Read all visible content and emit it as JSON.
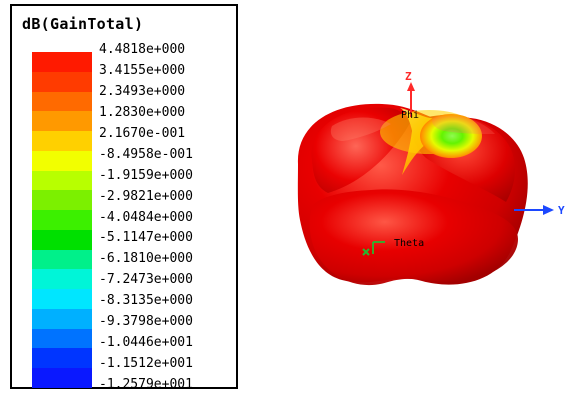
{
  "legend": {
    "title": "dB(GainTotal)",
    "labels": [
      "4.4818e+000",
      "3.4155e+000",
      "2.3493e+000",
      "1.2830e+000",
      "2.1670e-001",
      "-8.4958e-001",
      "-1.9159e+000",
      "-2.9821e+000",
      "-4.0484e+000",
      "-5.1147e+000",
      "-6.1810e+000",
      "-7.2473e+000",
      "-8.3135e+000",
      "-9.3798e+000",
      "-1.0446e+001",
      "-1.1512e+001",
      "-1.2579e+001"
    ],
    "colors": [
      "#ff1a00",
      "#ff3b00",
      "#ff6a00",
      "#ff9900",
      "#ffd000",
      "#f2ff00",
      "#b8ff00",
      "#7cf000",
      "#3cf000",
      "#00e000",
      "#00f08a",
      "#00f5d8",
      "#00e6ff",
      "#00b0ff",
      "#0073ff",
      "#0035ff",
      "#0a18ff"
    ]
  },
  "plot": {
    "axes": {
      "z_label": "Z",
      "y_label": "Y",
      "phi_label": "Phi",
      "theta_label": "Theta",
      "x_label": "X"
    },
    "colors": {
      "body_main": "#e60000",
      "body_highlight": "#ff3a2a",
      "body_shadow": "#a80000",
      "hot_spot": "#8fff3a",
      "hot_spot_ring": "#f4e300",
      "axis_red": "#ff2a2a",
      "axis_blue": "#1c48ff",
      "axis_green": "#27b82f"
    }
  }
}
